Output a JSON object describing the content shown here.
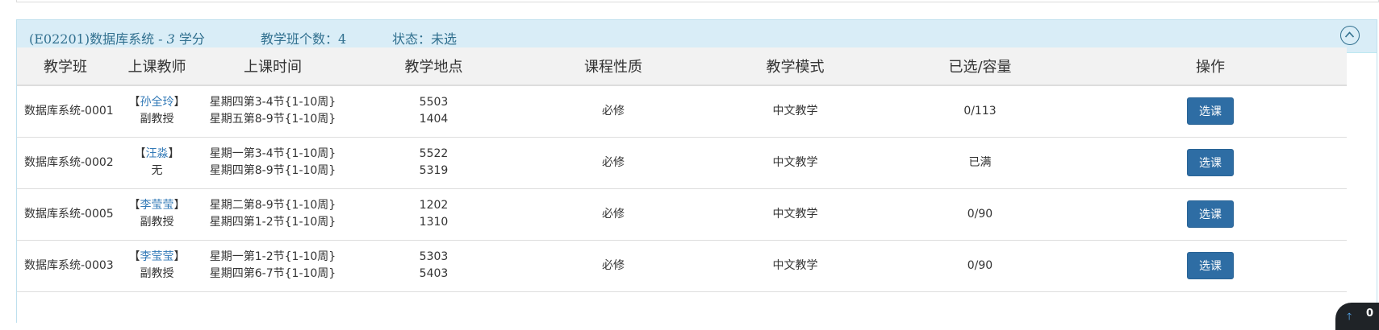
{
  "course": {
    "code_name": "(E02201)数据库系统 - ",
    "credit": "3",
    "credit_unit": " 学分",
    "class_count": "教学班个数：4",
    "status": "状态：未选"
  },
  "table": {
    "headers": [
      "教学班",
      "上课教师",
      "上课时间",
      "教学地点",
      "课程性质",
      "教学模式",
      "已选/容量",
      "操作"
    ],
    "rows": [
      {
        "class": "数据库系统-0001",
        "teacher": "孙全玲",
        "title": "副教授",
        "time1": "星期四第3-4节{1-10周}",
        "time2": "星期五第8-9节{1-10周}",
        "room1": "5503",
        "room2": "1404",
        "nature": "必修",
        "mode": "中文教学",
        "capacity": "0/113",
        "action": "选课"
      },
      {
        "class": "数据库系统-0002",
        "teacher": "汪淼",
        "title": "无",
        "time1": "星期一第3-4节{1-10周}",
        "time2": "星期四第8-9节{1-10周}",
        "room1": "5522",
        "room2": "5319",
        "nature": "必修",
        "mode": "中文教学",
        "capacity": "已满",
        "action": "选课"
      },
      {
        "class": "数据库系统-0005",
        "teacher": "李莹莹",
        "title": "副教授",
        "time1": "星期二第8-9节{1-10周}",
        "time2": "星期四第1-2节{1-10周}",
        "room1": "1202",
        "room2": "1310",
        "nature": "必修",
        "mode": "中文教学",
        "capacity": "0/90",
        "action": "选课"
      },
      {
        "class": "数据库系统-0003",
        "teacher": "李莹莹",
        "title": "副教授",
        "time1": "星期一第1-2节{1-10周}",
        "time2": "星期四第6-7节{1-10周}",
        "room1": "5303",
        "room2": "5403",
        "nature": "必修",
        "mode": "中文教学",
        "capacity": "0/90",
        "action": "选课"
      }
    ]
  },
  "corner_widget": {
    "count": "0",
    "icon": "arrow-up-icon"
  },
  "colors": {
    "header_bg": "#d9edf7",
    "header_text": "#31708f",
    "button": "#2e6da4",
    "link": "#337ab7"
  }
}
